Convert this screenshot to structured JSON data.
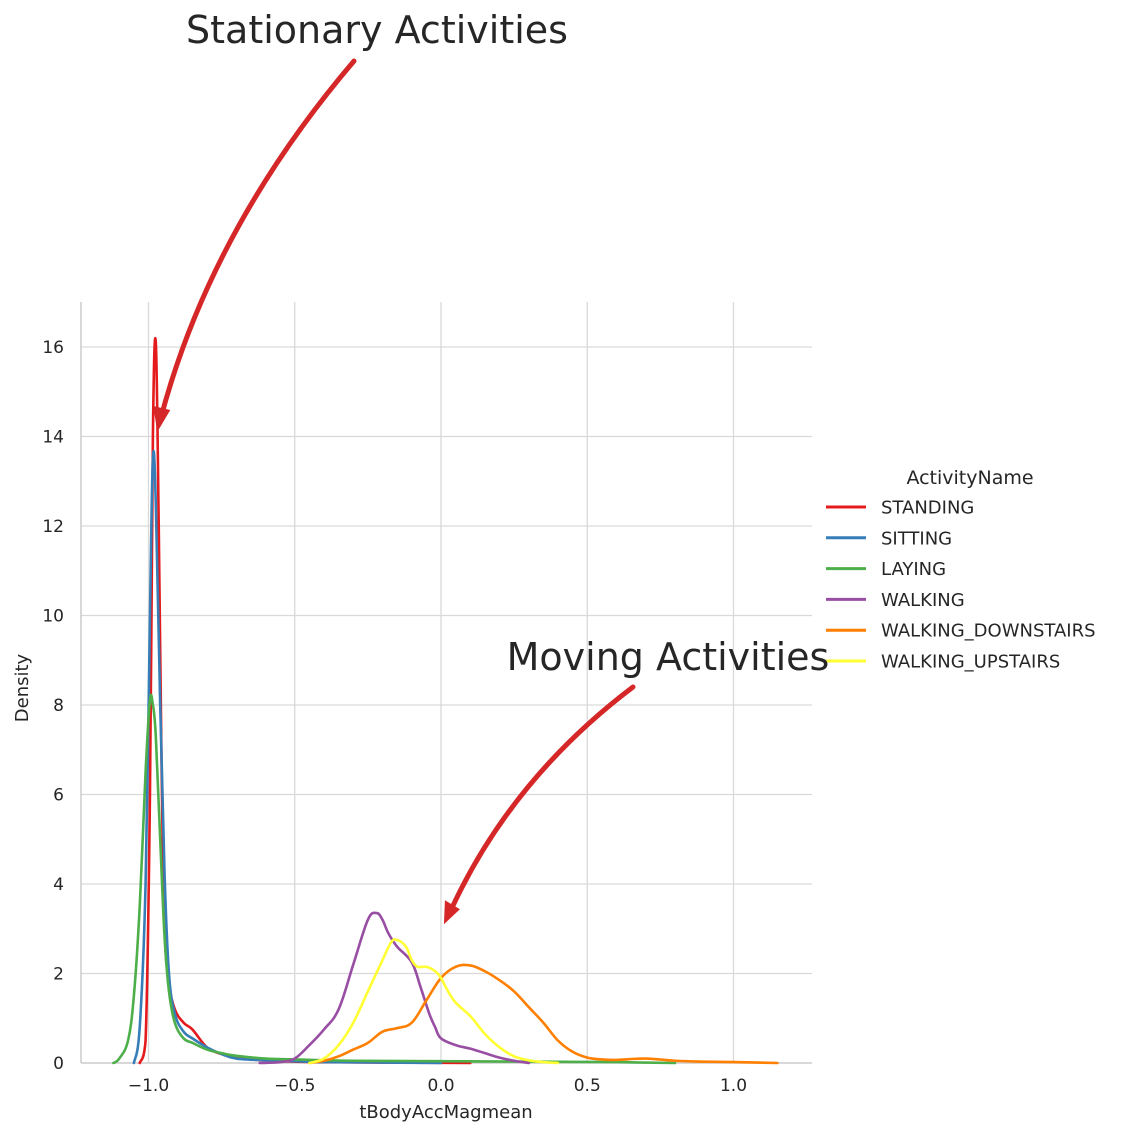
{
  "chart_data": {
    "type": "line",
    "plot_kind": "kde",
    "xlabel": "tBodyAccMagmean",
    "ylabel": "Density",
    "xlim": [
      -1.23,
      1.27
    ],
    "ylim": [
      0,
      17
    ],
    "xticks": [
      -1.0,
      -0.5,
      0.0,
      0.5,
      1.0
    ],
    "xtick_labels": [
      "−1.0",
      "−0.5",
      "0.0",
      "0.5",
      "1.0"
    ],
    "yticks": [
      0,
      2,
      4,
      6,
      8,
      10,
      12,
      14,
      16
    ],
    "ytick_labels": [
      "0",
      "2",
      "4",
      "6",
      "8",
      "10",
      "12",
      "14",
      "16"
    ],
    "grid": true,
    "legend": {
      "title": "ActivityName",
      "placement": "outside-right"
    },
    "series": [
      {
        "name": "STANDING",
        "color": "#e41a1c",
        "x": [
          -1.03,
          -1.01,
          -0.995,
          -0.985,
          -0.975,
          -0.965,
          -0.955,
          -0.945,
          -0.93,
          -0.91,
          -0.88,
          -0.85,
          -0.8,
          -0.75,
          -0.7,
          -0.65,
          -0.55,
          -0.4,
          -0.2,
          0.0,
          0.1
        ],
        "y": [
          0,
          0.5,
          6.0,
          14.0,
          16.1,
          12.0,
          6.5,
          3.0,
          1.8,
          1.2,
          0.9,
          0.75,
          0.35,
          0.2,
          0.12,
          0.08,
          0.04,
          0.02,
          0.01,
          0.005,
          0
        ]
      },
      {
        "name": "SITTING",
        "color": "#377eb8",
        "x": [
          -1.05,
          -1.03,
          -1.01,
          -0.995,
          -0.985,
          -0.975,
          -0.96,
          -0.945,
          -0.93,
          -0.91,
          -0.88,
          -0.85,
          -0.8,
          -0.75,
          -0.7,
          -0.6,
          -0.5,
          -0.4,
          -0.2,
          0.0
        ],
        "y": [
          0,
          0.8,
          4.0,
          10.0,
          13.5,
          12.5,
          8.0,
          4.2,
          2.0,
          1.1,
          0.7,
          0.55,
          0.35,
          0.2,
          0.1,
          0.06,
          0.04,
          0.02,
          0.01,
          0
        ]
      },
      {
        "name": "LAYING",
        "color": "#4daf4a",
        "x": [
          -1.12,
          -1.1,
          -1.07,
          -1.05,
          -1.03,
          -1.01,
          -0.995,
          -0.985,
          -0.975,
          -0.96,
          -0.945,
          -0.93,
          -0.91,
          -0.88,
          -0.85,
          -0.8,
          -0.75,
          -0.7,
          -0.6,
          -0.5,
          -0.3,
          0.0,
          0.3,
          0.6,
          0.8
        ],
        "y": [
          0,
          0.1,
          0.5,
          1.5,
          3.5,
          6.5,
          8.1,
          8.0,
          7.3,
          5.0,
          2.8,
          1.6,
          0.9,
          0.55,
          0.45,
          0.3,
          0.22,
          0.16,
          0.1,
          0.08,
          0.05,
          0.04,
          0.03,
          0.02,
          0
        ]
      },
      {
        "name": "WALKING",
        "color": "#984ea3",
        "x": [
          -0.62,
          -0.55,
          -0.5,
          -0.45,
          -0.4,
          -0.35,
          -0.3,
          -0.25,
          -0.22,
          -0.2,
          -0.18,
          -0.15,
          -0.1,
          -0.07,
          -0.04,
          -0.02,
          0.0,
          0.05,
          0.1,
          0.15,
          0.2,
          0.25,
          0.3
        ],
        "y": [
          0,
          0.02,
          0.1,
          0.4,
          0.75,
          1.2,
          2.2,
          3.2,
          3.35,
          3.2,
          2.9,
          2.6,
          2.25,
          1.7,
          1.1,
          0.8,
          0.55,
          0.4,
          0.32,
          0.22,
          0.12,
          0.05,
          0
        ]
      },
      {
        "name": "WALKING_DOWNSTAIRS",
        "color": "#ff7f00",
        "x": [
          -0.45,
          -0.4,
          -0.35,
          -0.3,
          -0.25,
          -0.2,
          -0.15,
          -0.1,
          -0.05,
          0.0,
          0.05,
          0.1,
          0.15,
          0.2,
          0.25,
          0.3,
          0.35,
          0.4,
          0.45,
          0.5,
          0.55,
          0.6,
          0.7,
          0.8,
          0.9,
          1.0,
          1.15
        ],
        "y": [
          0,
          0.05,
          0.15,
          0.3,
          0.45,
          0.7,
          0.78,
          0.9,
          1.4,
          1.9,
          2.15,
          2.18,
          2.05,
          1.85,
          1.6,
          1.25,
          0.9,
          0.5,
          0.25,
          0.12,
          0.08,
          0.07,
          0.1,
          0.05,
          0.03,
          0.02,
          0
        ]
      },
      {
        "name": "WALKING_UPSTAIRS",
        "color": "#ffff33",
        "x": [
          -0.45,
          -0.4,
          -0.35,
          -0.3,
          -0.25,
          -0.2,
          -0.17,
          -0.15,
          -0.12,
          -0.1,
          -0.08,
          -0.05,
          -0.02,
          0.0,
          0.02,
          0.05,
          0.1,
          0.15,
          0.2,
          0.25,
          0.3,
          0.35,
          0.4
        ],
        "y": [
          0,
          0.1,
          0.4,
          0.9,
          1.6,
          2.3,
          2.7,
          2.75,
          2.6,
          2.3,
          2.15,
          2.15,
          2.05,
          1.9,
          1.65,
          1.35,
          1.05,
          0.65,
          0.35,
          0.15,
          0.06,
          0.02,
          0
        ]
      }
    ],
    "annotations": [
      {
        "text": "Stationary Activities",
        "arrow_color": "#d62728",
        "arrow_tip": [
          -0.97,
          14.1
        ],
        "text_anchor_data": [
          -0.72,
          23.0
        ]
      },
      {
        "text": "Moving Activities",
        "arrow_color": "#d62728",
        "arrow_tip": [
          0.01,
          3.1
        ],
        "text_anchor_data": [
          0.66,
          8.5
        ]
      }
    ]
  }
}
